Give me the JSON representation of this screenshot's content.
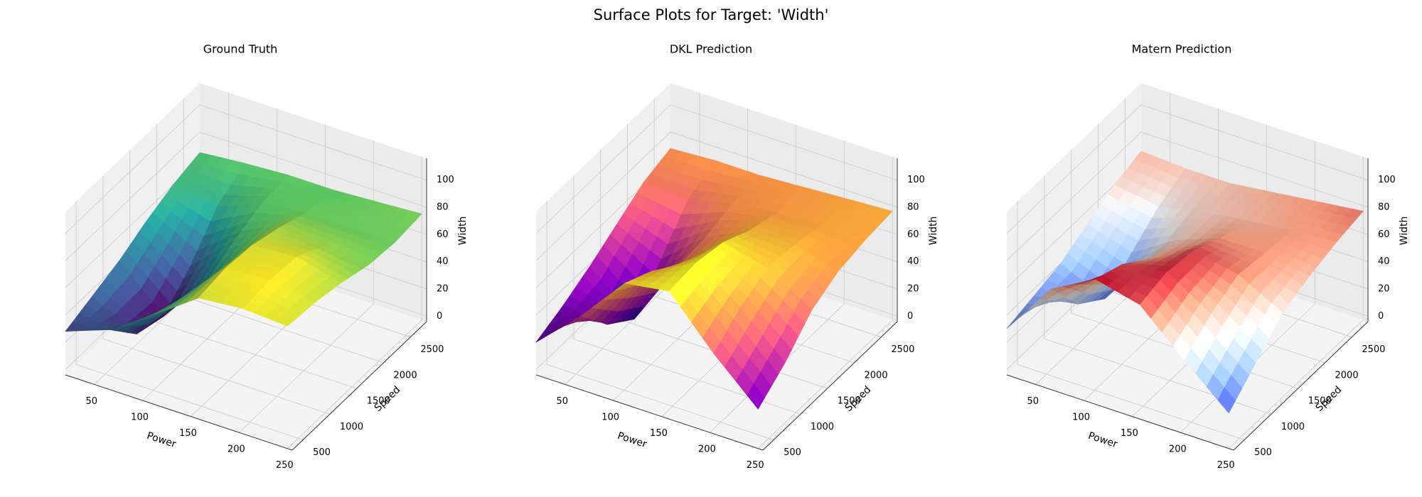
{
  "title": "Surface Plots for Target: 'Width'",
  "chart_data": [
    {
      "type": "surface",
      "title": "Ground Truth",
      "x_label": "Power",
      "y_label": "Speed",
      "z_label": "Width",
      "colormap": "viridis",
      "x": [
        20,
        66,
        112,
        158,
        204,
        250
      ],
      "y": [
        300,
        800,
        1300,
        1800,
        2300,
        2800
      ],
      "z": [
        [
          28,
          40,
          62,
          85,
          88,
          86
        ],
        [
          35,
          18,
          55,
          88,
          90,
          84
        ],
        [
          42,
          12,
          50,
          86,
          88,
          80
        ],
        [
          52,
          30,
          60,
          80,
          78,
          74
        ],
        [
          60,
          55,
          68,
          72,
          72,
          72
        ],
        [
          65,
          68,
          70,
          70,
          72,
          74
        ]
      ],
      "xlim": [
        20,
        255
      ],
      "ylim": [
        300,
        2800
      ],
      "zlim": [
        -4,
        116
      ],
      "xticks": [
        50,
        100,
        150,
        200,
        250
      ],
      "yticks": [
        500,
        1000,
        1500,
        2000,
        2500
      ],
      "zticks": [
        0,
        20,
        40,
        60,
        80,
        100
      ]
    },
    {
      "type": "surface",
      "title": "DKL Prediction",
      "x_label": "Power",
      "y_label": "Speed",
      "z_label": "Width",
      "colormap": "plasma",
      "x": [
        20,
        66,
        112,
        158,
        204,
        250
      ],
      "y": [
        300,
        800,
        1300,
        1800,
        2300,
        2800
      ],
      "z": [
        [
          20,
          50,
          85,
          90,
          55,
          25
        ],
        [
          28,
          25,
          75,
          92,
          70,
          40
        ],
        [
          38,
          10,
          60,
          88,
          80,
          60
        ],
        [
          50,
          35,
          62,
          78,
          78,
          70
        ],
        [
          62,
          60,
          68,
          72,
          74,
          74
        ],
        [
          68,
          70,
          70,
          72,
          74,
          76
        ]
      ],
      "xlim": [
        20,
        255
      ],
      "ylim": [
        300,
        2800
      ],
      "zlim": [
        -4,
        116
      ],
      "xticks": [
        50,
        100,
        150,
        200,
        250
      ],
      "yticks": [
        500,
        1000,
        1500,
        2000,
        2500
      ],
      "zticks": [
        0,
        20,
        40,
        60,
        80,
        100
      ]
    },
    {
      "type": "surface",
      "title": "Matern Prediction",
      "x_label": "Power",
      "y_label": "Speed",
      "z_label": "Width",
      "colormap": "coolwarm",
      "x": [
        20,
        66,
        112,
        158,
        204,
        250
      ],
      "y": [
        300,
        800,
        1300,
        1800,
        2300,
        2800
      ],
      "z": [
        [
          30,
          70,
          88,
          80,
          50,
          22
        ],
        [
          35,
          40,
          80,
          85,
          65,
          40
        ],
        [
          40,
          25,
          65,
          82,
          75,
          58
        ],
        [
          50,
          40,
          60,
          72,
          72,
          66
        ],
        [
          60,
          55,
          62,
          66,
          70,
          72
        ],
        [
          66,
          64,
          64,
          68,
          72,
          76
        ]
      ],
      "xlim": [
        20,
        255
      ],
      "ylim": [
        300,
        2800
      ],
      "zlim": [
        -4,
        116
      ],
      "xticks": [
        50,
        100,
        150,
        200,
        250
      ],
      "yticks": [
        500,
        1000,
        1500,
        2000,
        2500
      ],
      "zticks": [
        0,
        20,
        40,
        60,
        80,
        100
      ]
    }
  ]
}
